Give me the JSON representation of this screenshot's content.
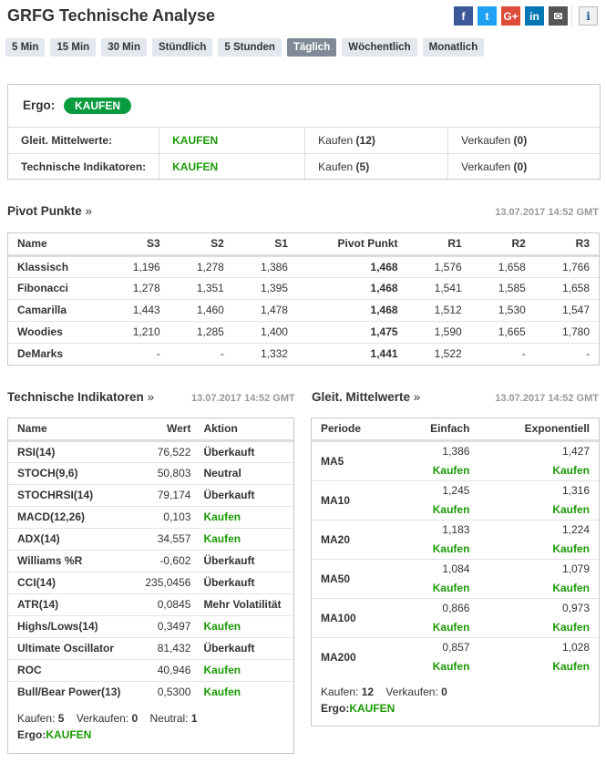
{
  "title": "GRFG Technische Analyse",
  "social": [
    {
      "name": "facebook",
      "glyph": "f",
      "color": "#3b5998"
    },
    {
      "name": "twitter",
      "glyph": "t",
      "color": "#1da1f2"
    },
    {
      "name": "google-plus",
      "glyph": "G+",
      "color": "#dd4b39"
    },
    {
      "name": "linkedin",
      "glyph": "in",
      "color": "#0077b5"
    },
    {
      "name": "email",
      "glyph": "✉",
      "color": "#555555"
    }
  ],
  "info_glyph": "i",
  "tabs": [
    "5 Min",
    "15 Min",
    "30 Min",
    "Stündlich",
    "5 Stunden",
    "Täglich",
    "Wöchentlich",
    "Monatlich"
  ],
  "active_tab": "Täglich",
  "summary": {
    "ergo_label": "Ergo:",
    "ergo_value": "KAUFEN",
    "rows": [
      {
        "label": "Gleit. Mittelwerte:",
        "signal": "KAUFEN",
        "buy_label": "Kaufen",
        "buy": "(12)",
        "sell_label": "Verkaufen",
        "sell": "(0)"
      },
      {
        "label": "Technische Indikatoren:",
        "signal": "KAUFEN",
        "buy_label": "Kaufen",
        "buy": "(5)",
        "sell_label": "Verkaufen",
        "sell": "(0)"
      }
    ]
  },
  "pivot": {
    "title": "Pivot Punkte",
    "raquo": "»",
    "timestamp": "13.07.2017 14:52 GMT",
    "headers": [
      "Name",
      "S3",
      "S2",
      "S1",
      "Pivot Punkt",
      "R1",
      "R2",
      "R3"
    ],
    "rows": [
      [
        "Klassisch",
        "1,196",
        "1,278",
        "1,386",
        "1,468",
        "1,576",
        "1,658",
        "1,766"
      ],
      [
        "Fibonacci",
        "1,278",
        "1,351",
        "1,395",
        "1,468",
        "1,541",
        "1,585",
        "1,658"
      ],
      [
        "Camarilla",
        "1,443",
        "1,460",
        "1,478",
        "1,468",
        "1,512",
        "1,530",
        "1,547"
      ],
      [
        "Woodies",
        "1,210",
        "1,285",
        "1,400",
        "1,475",
        "1,590",
        "1,665",
        "1,780"
      ],
      [
        "DeMarks",
        "-",
        "-",
        "1,332",
        "1,441",
        "1,522",
        "-",
        "-"
      ]
    ]
  },
  "indicators": {
    "title": "Technische Indikatoren",
    "raquo": "»",
    "timestamp": "13.07.2017 14:52 GMT",
    "headers": [
      "Name",
      "Wert",
      "Aktion"
    ],
    "rows": [
      [
        "RSI(14)",
        "76,522",
        "Überkauft"
      ],
      [
        "STOCH(9,6)",
        "50,803",
        "Neutral"
      ],
      [
        "STOCHRSI(14)",
        "79,174",
        "Überkauft"
      ],
      [
        "MACD(12,26)",
        "0,103",
        "Kaufen"
      ],
      [
        "ADX(14)",
        "34,557",
        "Kaufen"
      ],
      [
        "Williams %R",
        "-0,602",
        "Überkauft"
      ],
      [
        "CCI(14)",
        "235,0456",
        "Überkauft"
      ],
      [
        "ATR(14)",
        "0,0845",
        "Mehr Volatilität"
      ],
      [
        "Highs/Lows(14)",
        "0,3497",
        "Kaufen"
      ],
      [
        "Ultimate Oscillator",
        "81,432",
        "Überkauft"
      ],
      [
        "ROC",
        "40,946",
        "Kaufen"
      ],
      [
        "Bull/Bear Power(13)",
        "0,5300",
        "Kaufen"
      ]
    ],
    "buy_label": "Kaufen:",
    "buy": "5",
    "sell_label": "Verkaufen:",
    "sell": "0",
    "neutral_label": "Neutral:",
    "neutral": "1",
    "ergo_label": "Ergo:",
    "ergo": "KAUFEN"
  },
  "ma": {
    "title": "Gleit. Mittelwerte",
    "raquo": "»",
    "timestamp": "13.07.2017 14:52 GMT",
    "headers": [
      "Periode",
      "Einfach",
      "Exponentiell"
    ],
    "rows": [
      [
        "MA5",
        "1,386",
        "Kaufen",
        "1,427",
        "Kaufen"
      ],
      [
        "MA10",
        "1,245",
        "Kaufen",
        "1,316",
        "Kaufen"
      ],
      [
        "MA20",
        "1,183",
        "Kaufen",
        "1,224",
        "Kaufen"
      ],
      [
        "MA50",
        "1,084",
        "Kaufen",
        "1,079",
        "Kaufen"
      ],
      [
        "MA100",
        "0,866",
        "Kaufen",
        "0,973",
        "Kaufen"
      ],
      [
        "MA200",
        "0,857",
        "Kaufen",
        "1,028",
        "Kaufen"
      ]
    ],
    "buy_label": "Kaufen:",
    "buy": "12",
    "sell_label": "Verkaufen:",
    "sell": "0",
    "ergo_label": "Ergo:",
    "ergo": "KAUFEN"
  },
  "colors": {
    "buy": "#1b9a06",
    "ergo_pill": "#0a9b3e",
    "active_tab": "#7f8a96",
    "tab": "#e3e8ee"
  }
}
